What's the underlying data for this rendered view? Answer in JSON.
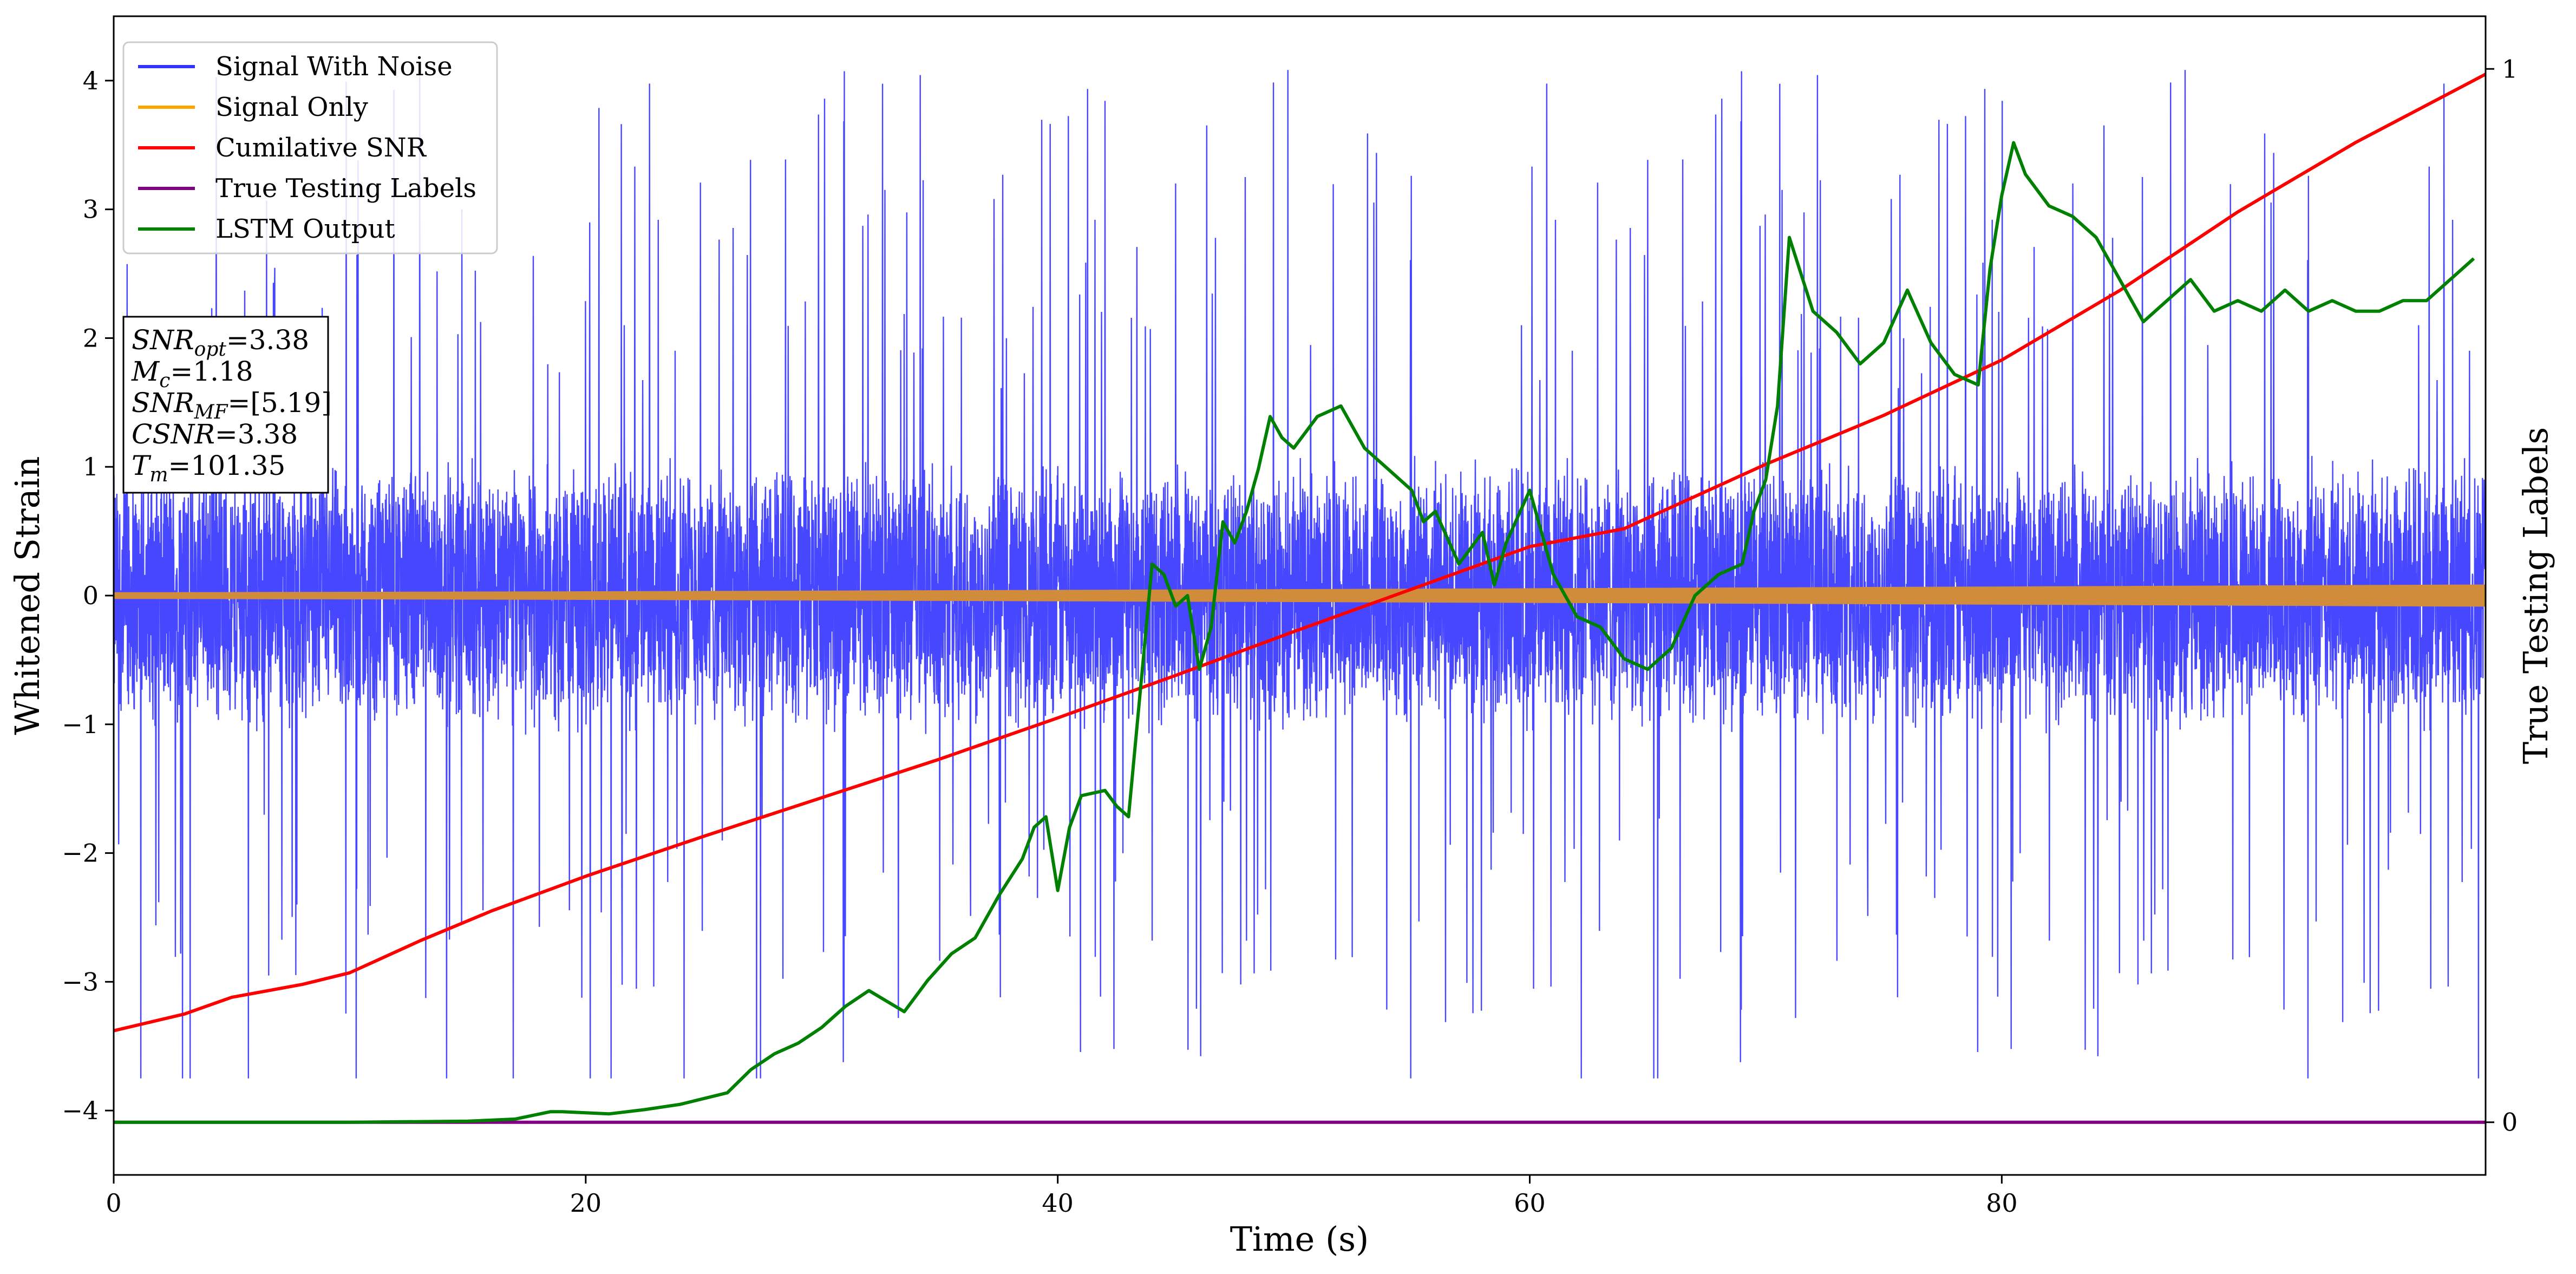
{
  "chart_data": {
    "type": "line",
    "xlabel": "Time (s)",
    "ylabel": "Whitened Strain",
    "ylabel_right": "True Testing Labels",
    "xlim": [
      0,
      100.5
    ],
    "ylim": [
      -4.5,
      4.5
    ],
    "ylim_right": [
      -0.05,
      1.05
    ],
    "x_ticks": [
      0,
      20,
      40,
      60,
      80
    ],
    "x_tick_labels": [
      "0",
      "20",
      "40",
      "60",
      "80"
    ],
    "y_ticks": [
      -4,
      -3,
      -2,
      -1,
      0,
      1,
      2,
      3,
      4
    ],
    "y_tick_labels": [
      "−4",
      "−3",
      "−2",
      "−1",
      "0",
      "1",
      "2",
      "3",
      "4"
    ],
    "y_right_ticks": [
      0,
      1
    ],
    "y_right_tick_labels": [
      "0",
      "1"
    ],
    "grid": false,
    "legend_placement": "top-left",
    "colors": {
      "Signal With Noise": "#3333ff",
      "Signal Only": "#ffa500",
      "Signal Only Band": "#d08c3a",
      "Cumilative SNR": "#ff0000",
      "True Testing Labels": "#800080",
      "LSTM Output": "#008000"
    },
    "legend": [
      {
        "name": "Signal With Noise",
        "color": "#3333ff"
      },
      {
        "name": "Signal Only",
        "color": "#ffa500"
      },
      {
        "name": "Cumilative SNR",
        "color": "#ff0000"
      },
      {
        "name": "True Testing Labels",
        "color": "#800080"
      },
      {
        "name": "LSTM Output",
        "color": "#008000"
      }
    ],
    "annotation_box": [
      {
        "name": "SNR",
        "sub": "opt",
        "value": "=3.38"
      },
      {
        "name": "M",
        "sub": "c",
        "value": "=1.18"
      },
      {
        "name": "SNR",
        "sub": "MF",
        "value": "=[5.19]"
      },
      {
        "name": "CSNR",
        "sub": "",
        "value": "=3.38"
      },
      {
        "name": "T",
        "sub": "m",
        "value": "=101.35"
      }
    ],
    "series": [
      {
        "name": "Signal With Noise",
        "axis": "left",
        "noise_envelope": {
          "typical_abs": 1.1,
          "peak_abs": 4.1,
          "min": -3.75,
          "max": 4.1
        }
      },
      {
        "name": "Signal Only",
        "axis": "left",
        "amplitude_start": 0.02,
        "amplitude_end": 0.08
      },
      {
        "name": "Cumilative SNR",
        "axis": "left",
        "x": [
          0,
          3,
          5,
          8,
          10,
          13,
          16,
          20,
          25,
          30,
          35,
          40,
          45,
          50,
          55,
          60,
          64,
          70,
          75,
          80,
          85,
          90,
          95,
          100.5
        ],
        "y": [
          -3.38,
          -3.25,
          -3.12,
          -3.02,
          -2.93,
          -2.68,
          -2.45,
          -2.18,
          -1.87,
          -1.57,
          -1.27,
          -0.95,
          -0.62,
          -0.28,
          0.05,
          0.38,
          0.52,
          1.02,
          1.4,
          1.83,
          2.37,
          2.98,
          3.52,
          4.05
        ]
      },
      {
        "name": "True Testing Labels",
        "axis": "right",
        "x": [
          0,
          100.5
        ],
        "y": [
          0,
          0
        ]
      },
      {
        "name": "LSTM Output",
        "axis": "right",
        "x": [
          0,
          10,
          15,
          17,
          18.5,
          19,
          21,
          22.5,
          24,
          26,
          27,
          28,
          29,
          30,
          31,
          32,
          33.5,
          34.5,
          35.5,
          36.5,
          37.5,
          38.5,
          39,
          39.5,
          40,
          40.5,
          41,
          42,
          42.5,
          43,
          43.5,
          44,
          44.5,
          45,
          45.5,
          46,
          46.5,
          47,
          47.5,
          48,
          48.5,
          49,
          49.5,
          50,
          51,
          52,
          53,
          54,
          55,
          55.5,
          56,
          57,
          58,
          58.5,
          59,
          60,
          61,
          62,
          63,
          64,
          65,
          66,
          67,
          68,
          69,
          69.5,
          70,
          70.5,
          71,
          72,
          73,
          74,
          75,
          76,
          77,
          78,
          79,
          79.5,
          80,
          80.5,
          81,
          82,
          83,
          84,
          85,
          86,
          87,
          88,
          89,
          90,
          91,
          92,
          93,
          94,
          95,
          96,
          97,
          98,
          99,
          100
        ],
        "y": [
          0,
          0,
          0.001,
          0.003,
          0.01,
          0.01,
          0.008,
          0.012,
          0.017,
          0.028,
          0.05,
          0.065,
          0.075,
          0.09,
          0.11,
          0.125,
          0.105,
          0.135,
          0.16,
          0.175,
          0.215,
          0.25,
          0.28,
          0.29,
          0.22,
          0.28,
          0.31,
          0.315,
          0.3,
          0.29,
          0.41,
          0.53,
          0.52,
          0.49,
          0.5,
          0.43,
          0.47,
          0.57,
          0.55,
          0.58,
          0.62,
          0.67,
          0.65,
          0.64,
          0.67,
          0.68,
          0.64,
          0.62,
          0.6,
          0.57,
          0.58,
          0.53,
          0.56,
          0.51,
          0.55,
          0.6,
          0.52,
          0.48,
          0.47,
          0.44,
          0.43,
          0.45,
          0.5,
          0.52,
          0.53,
          0.58,
          0.61,
          0.68,
          0.84,
          0.77,
          0.75,
          0.72,
          0.74,
          0.79,
          0.74,
          0.71,
          0.7,
          0.81,
          0.88,
          0.93,
          0.9,
          0.87,
          0.86,
          0.84,
          0.8,
          0.76,
          0.78,
          0.8,
          0.77,
          0.78,
          0.77,
          0.79,
          0.77,
          0.78,
          0.77,
          0.77,
          0.78,
          0.78,
          0.8,
          0.82
        ]
      }
    ]
  }
}
